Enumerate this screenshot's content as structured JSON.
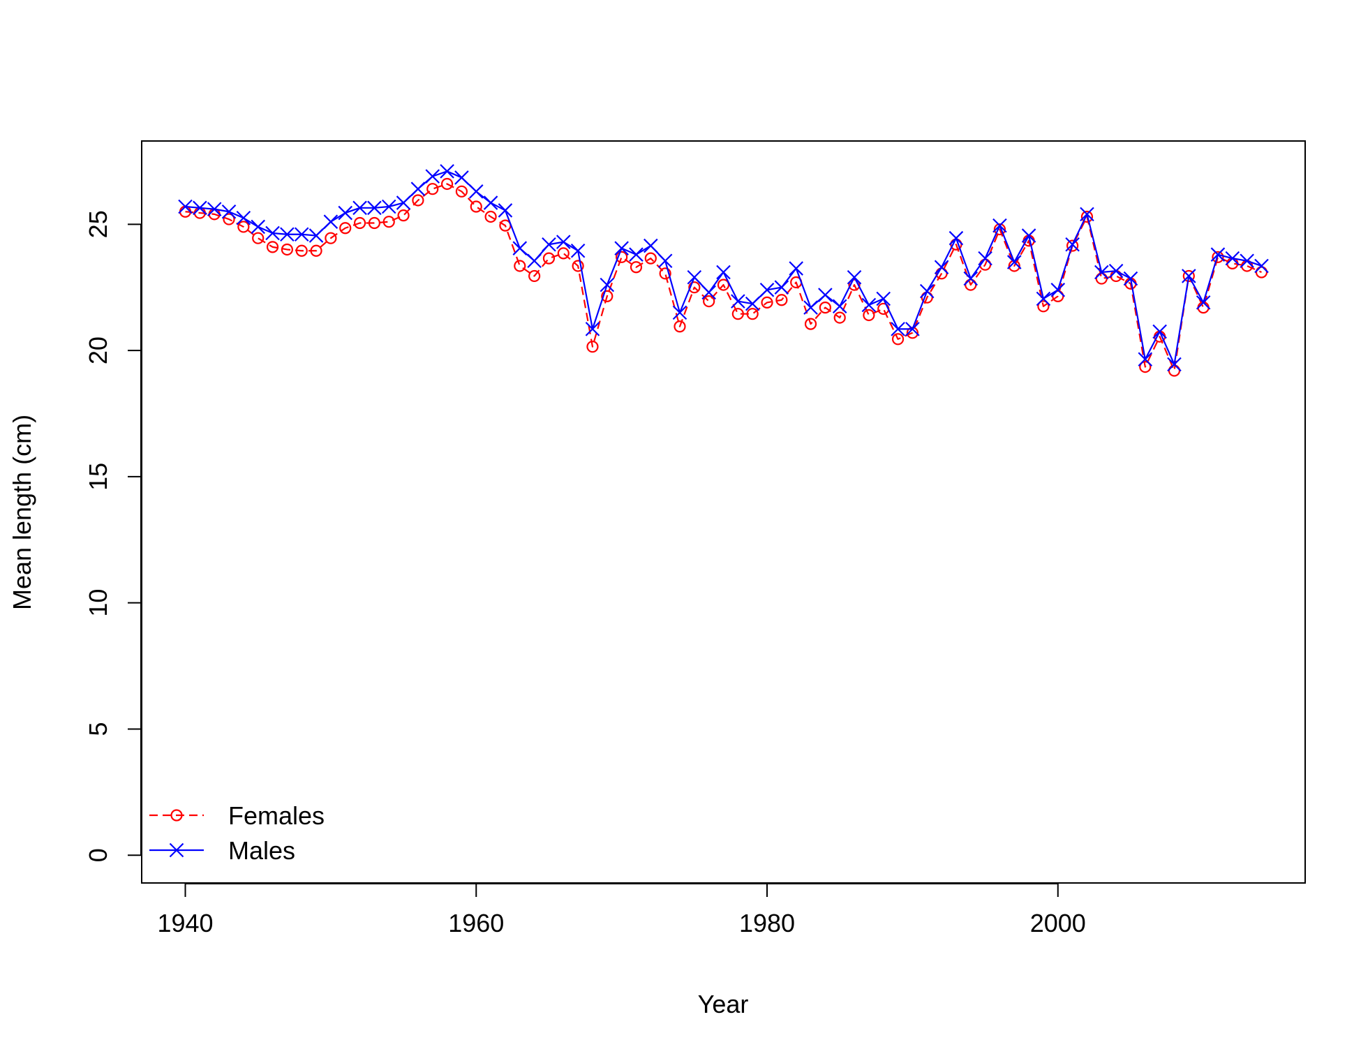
{
  "chart_data": {
    "type": "line",
    "title": "",
    "xlabel": "Year",
    "ylabel": "Mean length (cm)",
    "xlim": [
      1937,
      2017
    ],
    "ylim": [
      -1.1,
      28.3
    ],
    "xticks": [
      1940,
      1960,
      1980,
      2000
    ],
    "yticks": [
      0,
      5,
      10,
      15,
      20,
      25
    ],
    "grid": false,
    "legend": "bottom-left",
    "x": [
      1940,
      1941,
      1942,
      1943,
      1944,
      1945,
      1946,
      1947,
      1948,
      1949,
      1950,
      1951,
      1952,
      1953,
      1954,
      1955,
      1956,
      1957,
      1958,
      1959,
      1960,
      1961,
      1962,
      1963,
      1964,
      1965,
      1966,
      1967,
      1968,
      1969,
      1970,
      1971,
      1972,
      1973,
      1974,
      1975,
      1976,
      1977,
      1978,
      1979,
      1980,
      1981,
      1982,
      1983,
      1984,
      1985,
      1986,
      1987,
      1988,
      1989,
      1990,
      1991,
      1992,
      1993,
      1994,
      1995,
      1996,
      1997,
      1998,
      1999,
      2000,
      2001,
      2002,
      2003,
      2004,
      2005,
      2006,
      2007,
      2008,
      2009,
      2010,
      2011,
      2012,
      2013,
      2014
    ],
    "series": [
      {
        "name": "Females",
        "color": "#ff0000",
        "line": "dashed",
        "marker": "circle",
        "values": [
          25.5,
          25.45,
          25.4,
          25.2,
          24.9,
          24.45,
          24.1,
          24.0,
          23.95,
          23.95,
          24.45,
          24.85,
          25.05,
          25.05,
          25.1,
          25.35,
          25.95,
          26.4,
          26.6,
          26.3,
          25.7,
          25.3,
          24.95,
          23.35,
          22.95,
          23.65,
          23.85,
          23.35,
          20.15,
          22.15,
          23.7,
          23.3,
          23.65,
          23.05,
          20.95,
          22.5,
          21.95,
          22.6,
          21.45,
          21.45,
          21.9,
          22.0,
          22.7,
          21.05,
          21.7,
          21.3,
          22.6,
          21.4,
          21.65,
          20.45,
          20.7,
          22.1,
          23.05,
          24.2,
          22.6,
          23.4,
          24.8,
          23.35,
          24.35,
          21.75,
          22.15,
          24.15,
          25.3,
          22.85,
          22.95,
          22.65,
          19.35,
          20.55,
          19.2,
          22.95,
          21.7,
          23.7,
          23.45,
          23.35,
          23.1
        ]
      },
      {
        "name": "Males",
        "color": "#0000ff",
        "line": "solid",
        "marker": "cross",
        "values": [
          25.7,
          25.65,
          25.6,
          25.5,
          25.25,
          24.9,
          24.65,
          24.6,
          24.6,
          24.55,
          25.1,
          25.45,
          25.65,
          25.65,
          25.7,
          25.85,
          26.4,
          26.9,
          27.1,
          26.85,
          26.3,
          25.85,
          25.55,
          24.05,
          23.55,
          24.2,
          24.3,
          23.95,
          20.85,
          22.6,
          24.05,
          23.8,
          24.15,
          23.55,
          21.5,
          22.9,
          22.3,
          23.1,
          21.95,
          21.85,
          22.4,
          22.5,
          23.25,
          21.7,
          22.2,
          21.75,
          22.9,
          21.8,
          22.05,
          20.85,
          20.85,
          22.35,
          23.3,
          24.45,
          22.85,
          23.65,
          24.95,
          23.5,
          24.55,
          22.05,
          22.4,
          24.2,
          25.4,
          23.1,
          23.15,
          22.85,
          19.65,
          20.75,
          19.45,
          22.95,
          21.9,
          23.8,
          23.65,
          23.55,
          23.35
        ]
      }
    ]
  }
}
